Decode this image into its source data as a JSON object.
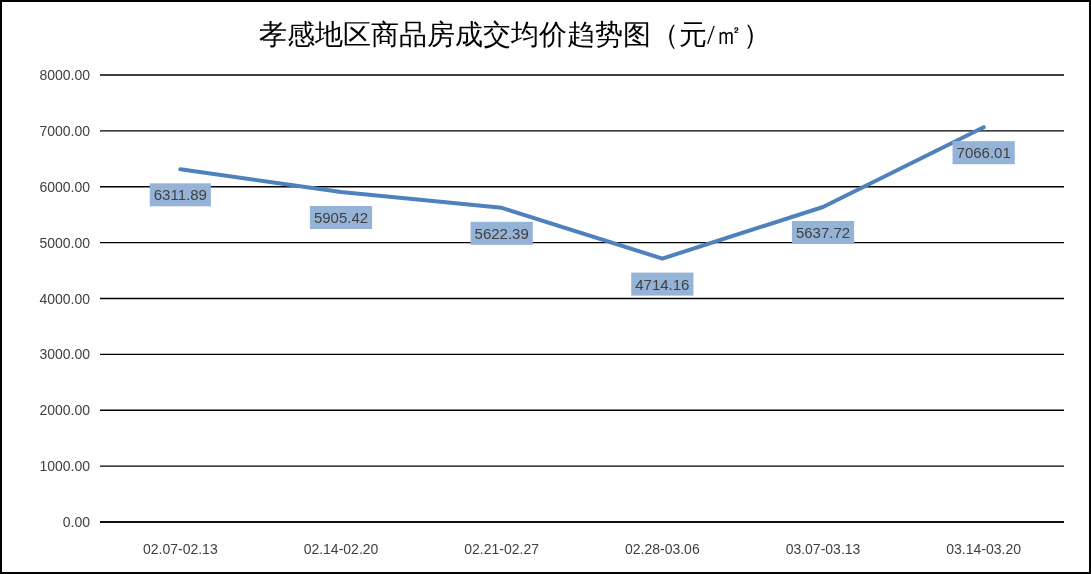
{
  "chart_data": {
    "type": "line",
    "title": "孝感地区商品房成交均价趋势图（元/㎡）",
    "categories": [
      "02.07-02.13",
      "02.14-02.20",
      "02.21-02.27",
      "02.28-03.06",
      "03.07-03.13",
      "03.14-03.20"
    ],
    "series": [
      {
        "color": "#4f81bd",
        "values": [
          6311.89,
          5905.42,
          5622.39,
          4714.16,
          5637.72,
          7066.01
        ]
      }
    ],
    "ylim": [
      0,
      8000
    ],
    "yticks": [
      {
        "value": 0,
        "label": "0.00"
      },
      {
        "value": 1000,
        "label": "1000.00"
      },
      {
        "value": 2000,
        "label": "2000.00"
      },
      {
        "value": 3000,
        "label": "3000.00"
      },
      {
        "value": 4000,
        "label": "4000.00"
      },
      {
        "value": 5000,
        "label": "5000.00"
      },
      {
        "value": 6000,
        "label": "6000.00"
      },
      {
        "value": 7000,
        "label": "7000.00"
      },
      {
        "value": 8000,
        "label": "8000.00"
      }
    ],
    "grid": "y",
    "marker": "none",
    "line_style": "solid",
    "data_labels": true
  }
}
